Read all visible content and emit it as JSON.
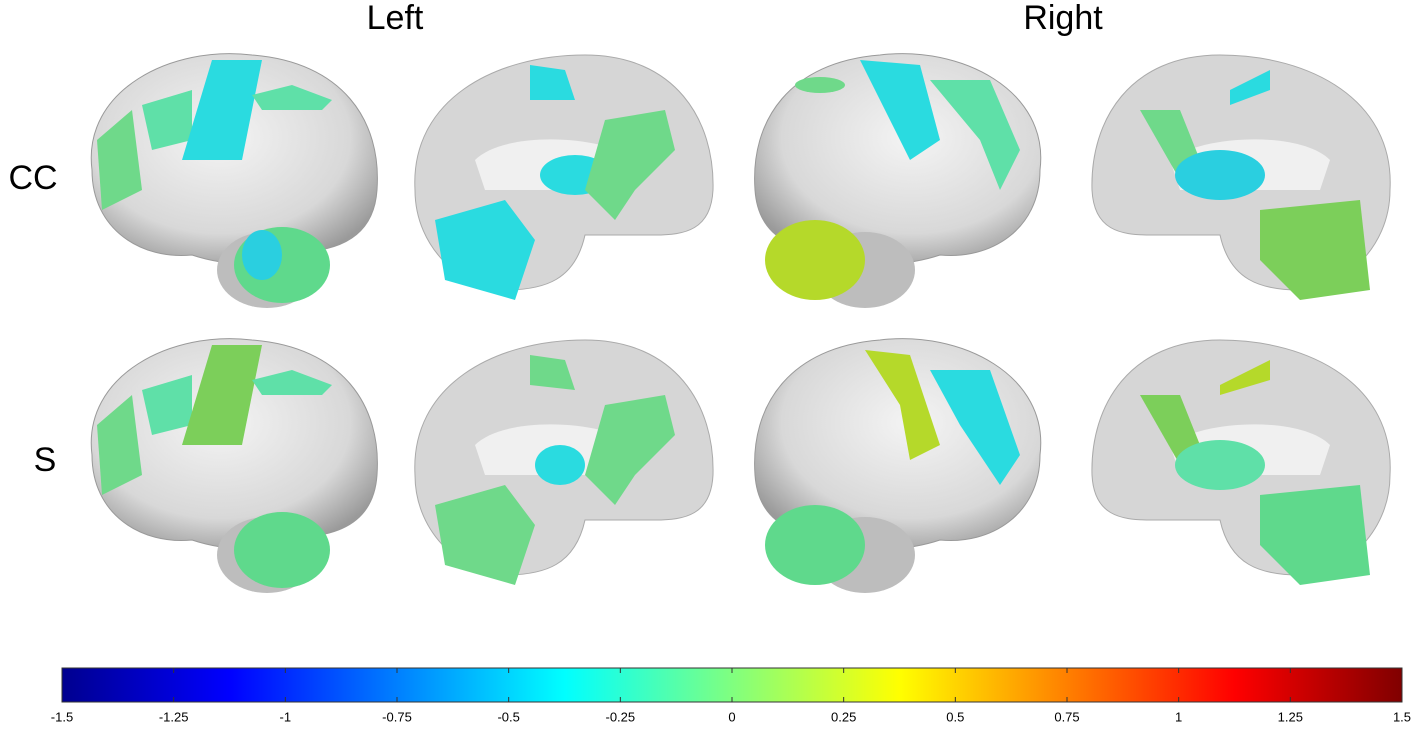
{
  "column_labels": [
    "Left",
    "Right"
  ],
  "row_labels": [
    "CC",
    "S"
  ],
  "colorbar": {
    "lim": [
      -1.5,
      1.5
    ],
    "ticks": [
      -1.5,
      -1.25,
      -1,
      -0.75,
      -0.5,
      -0.25,
      0,
      0.25,
      0.5,
      0.75,
      1,
      1.25,
      1.5
    ]
  }
}
